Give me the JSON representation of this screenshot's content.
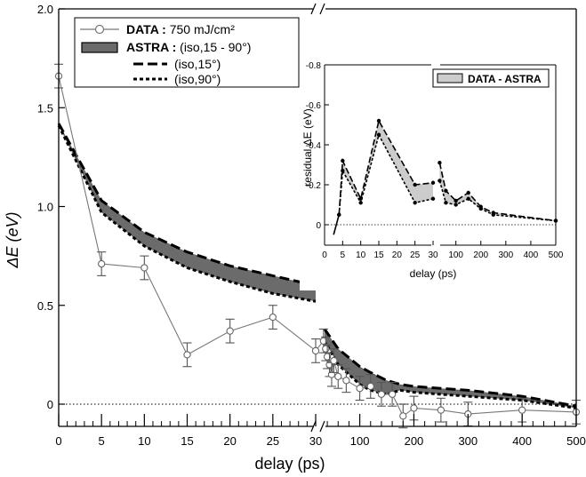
{
  "chart_data": {
    "type": "line",
    "xlabel": "delay (ps)",
    "ylabel": "ΔE (eV)",
    "ylim": [
      -0.1,
      2.0
    ],
    "y_ticks": [
      "0",
      "0.5",
      "1.0",
      "1.5",
      "2.0"
    ],
    "y_tick_values": [
      0,
      0.5,
      1.0,
      1.5,
      2.0
    ],
    "x_axis_segments": [
      {
        "range": [
          0,
          30
        ],
        "ticks": [
          "0",
          "5",
          "10",
          "15",
          "20",
          "25",
          "30"
        ],
        "tick_values": [
          0,
          5,
          10,
          15,
          20,
          25,
          30
        ],
        "scale": "linear"
      },
      {
        "range": [
          30,
          500
        ],
        "ticks": [
          "100",
          "200",
          "300",
          "400",
          "500"
        ],
        "tick_values": [
          100,
          200,
          300,
          400,
          500
        ],
        "scale": "linear"
      }
    ],
    "broken_x_axis": true,
    "zero_reference_line": true,
    "legend": {
      "placement": "top-left",
      "entries": [
        {
          "bold": "DATA :",
          "text": " 750 mJ/cm²",
          "style": "line-with-open-circle"
        },
        {
          "bold": "ASTRA :",
          "text": " (iso,15 - 90°)",
          "style": "gray-band"
        },
        {
          "bold": "",
          "text": "(iso,15°)",
          "style": "dashed-long"
        },
        {
          "bold": "",
          "text": "(iso,90°)",
          "style": "dashed-short"
        }
      ]
    },
    "series": [
      {
        "name": "DATA : 750 mJ/cm²",
        "color": "#777777",
        "x": [
          0,
          5,
          10,
          15,
          20,
          25,
          30,
          33,
          37,
          40,
          44,
          48,
          52,
          60,
          75,
          100,
          120,
          140,
          160,
          180,
          200,
          250,
          300,
          400,
          500
        ],
        "y": [
          1.66,
          0.71,
          0.69,
          0.25,
          0.37,
          0.44,
          0.27,
          0.32,
          0.28,
          0.24,
          0.2,
          0.15,
          0.22,
          0.14,
          0.12,
          0.08,
          0.09,
          0.05,
          0.05,
          -0.06,
          -0.02,
          -0.03,
          -0.05,
          -0.03,
          -0.04
        ],
        "error": [
          0.06,
          0.06,
          0.06,
          0.06,
          0.06,
          0.06,
          0.06,
          0.06,
          0.06,
          0.06,
          0.06,
          0.06,
          0.06,
          0.06,
          0.06,
          0.06,
          0.06,
          0.06,
          0.06,
          0.06,
          0.06,
          0.06,
          0.06,
          0.06,
          0.06
        ]
      },
      {
        "name": "(iso,15°)",
        "color": "#000000",
        "x": [
          0,
          5,
          10,
          15,
          20,
          25,
          30,
          35,
          60,
          100,
          120,
          150,
          175,
          200,
          250,
          300,
          400,
          500
        ],
        "y": [
          1.42,
          1.03,
          0.87,
          0.77,
          0.7,
          0.65,
          0.6,
          0.38,
          0.28,
          0.19,
          0.16,
          0.12,
          0.1,
          0.09,
          0.08,
          0.07,
          0.04,
          -0.01
        ]
      },
      {
        "name": "(iso,90°)",
        "color": "#000000",
        "x": [
          0,
          5,
          10,
          15,
          20,
          25,
          30,
          35,
          60,
          100,
          120,
          150,
          175,
          200,
          250,
          300,
          400,
          500
        ],
        "y": [
          1.41,
          0.97,
          0.8,
          0.69,
          0.62,
          0.56,
          0.52,
          0.32,
          0.2,
          0.1,
          0.07,
          0.05,
          0.07,
          0.06,
          0.05,
          0.04,
          0.02,
          -0.02
        ]
      }
    ],
    "inset": {
      "type": "line",
      "xlabel": "delay (ps)",
      "ylabel": "residual ΔE (eV)",
      "ylim": [
        0,
        -0.8
      ],
      "y_ticks": [
        "-0.8",
        "-0.6",
        "-0.4",
        "-0.2",
        "0"
      ],
      "y_tick_values": [
        -0.8,
        -0.6,
        -0.4,
        -0.2,
        0
      ],
      "x_axis_segments": [
        {
          "range": [
            0,
            30
          ],
          "ticks": [
            "0",
            "5",
            "10",
            "15",
            "20",
            "25",
            "30"
          ],
          "tick_values": [
            0,
            5,
            10,
            15,
            20,
            25,
            30
          ]
        },
        {
          "range": [
            30,
            500
          ],
          "ticks": [
            "100",
            "200",
            "300",
            "400",
            "500"
          ],
          "tick_values": [
            100,
            200,
            300,
            400,
            500
          ]
        }
      ],
      "legend": {
        "placement": "top-right",
        "entries": [
          {
            "text": "DATA - ASTRA",
            "style": "light-gray-band"
          }
        ]
      },
      "series": [
        {
          "name": "residual (iso,15°)",
          "x": [
            4,
            5,
            10,
            15,
            25,
            30,
            35,
            60,
            100,
            150,
            200,
            250,
            500
          ],
          "y": [
            -0.05,
            -0.32,
            -0.13,
            -0.52,
            -0.2,
            -0.21,
            -0.31,
            -0.17,
            -0.12,
            -0.16,
            -0.09,
            -0.06,
            -0.02
          ]
        },
        {
          "name": "residual (iso,90°)",
          "x": [
            4,
            5,
            10,
            15,
            25,
            30,
            35,
            60,
            100,
            150,
            200,
            250,
            500
          ],
          "y": [
            -0.05,
            -0.27,
            -0.11,
            -0.45,
            -0.11,
            -0.13,
            -0.22,
            -0.11,
            -0.1,
            -0.13,
            -0.08,
            -0.05,
            -0.02
          ]
        }
      ]
    }
  }
}
